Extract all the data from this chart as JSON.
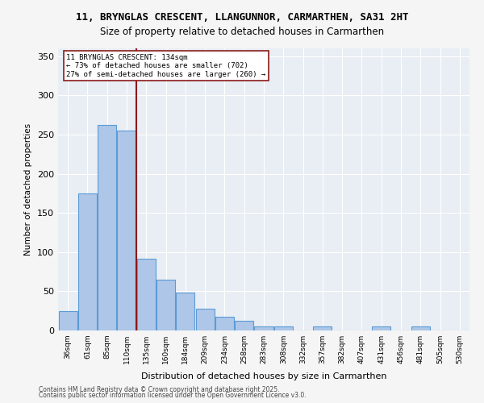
{
  "title_line1": "11, BRYNGLAS CRESCENT, LLANGUNNOR, CARMARTHEN, SA31 2HT",
  "title_line2": "Size of property relative to detached houses in Carmarthen",
  "xlabel": "Distribution of detached houses by size in Carmarthen",
  "ylabel": "Number of detached properties",
  "footer_line1": "Contains HM Land Registry data © Crown copyright and database right 2025.",
  "footer_line2": "Contains public sector information licensed under the Open Government Licence v3.0.",
  "bar_labels": [
    "36sqm",
    "61sqm",
    "85sqm",
    "110sqm",
    "135sqm",
    "160sqm",
    "184sqm",
    "209sqm",
    "234sqm",
    "258sqm",
    "283sqm",
    "308sqm",
    "332sqm",
    "357sqm",
    "382sqm",
    "407sqm",
    "431sqm",
    "456sqm",
    "481sqm",
    "505sqm",
    "530sqm"
  ],
  "bar_values": [
    25,
    175,
    262,
    255,
    92,
    65,
    48,
    28,
    18,
    12,
    5,
    5,
    0,
    5,
    0,
    0,
    5,
    0,
    5,
    0,
    0
  ],
  "bar_color": "#aec6e8",
  "bar_edge_color": "#5b9bd5",
  "background_color": "#e8eef4",
  "grid_color": "#ffffff",
  "vline_x_index": 4,
  "vline_color": "#8b1a1a",
  "vline_label": "11 BRYNGLAS CRESCENT: 134sqm",
  "annotation_line1": "11 BRYNGLAS CRESCENT: 134sqm",
  "annotation_line2": "← 73% of detached houses are smaller (702)",
  "annotation_line3": "27% of semi-detached houses are larger (260) →",
  "ylim": [
    0,
    360
  ],
  "yticks": [
    0,
    50,
    100,
    150,
    200,
    250,
    300,
    350
  ]
}
